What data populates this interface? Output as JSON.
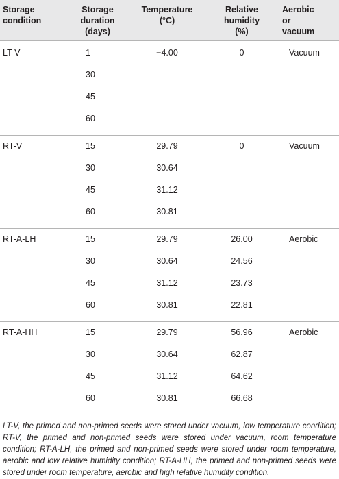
{
  "table": {
    "headers": {
      "condition": [
        "Storage",
        "condition"
      ],
      "duration": [
        "Storage",
        "duration",
        "(days)"
      ],
      "temperature": [
        "Temperature",
        "(°C)"
      ],
      "humidity": [
        "Relative",
        "humidity",
        "(%)"
      ],
      "aerobic": [
        "Aerobic",
        "or",
        "vacuum"
      ]
    },
    "groups": [
      {
        "condition": "LT-V",
        "aerobic": "Vacuum",
        "rows": [
          {
            "duration": "1",
            "temperature": "−4.00",
            "humidity": "0"
          },
          {
            "duration": "30",
            "temperature": "",
            "humidity": ""
          },
          {
            "duration": "45",
            "temperature": "",
            "humidity": ""
          },
          {
            "duration": "60",
            "temperature": "",
            "humidity": ""
          }
        ]
      },
      {
        "condition": "RT-V",
        "aerobic": "Vacuum",
        "rows": [
          {
            "duration": "15",
            "temperature": "29.79",
            "humidity": "0"
          },
          {
            "duration": "30",
            "temperature": "30.64",
            "humidity": ""
          },
          {
            "duration": "45",
            "temperature": "31.12",
            "humidity": ""
          },
          {
            "duration": "60",
            "temperature": "30.81",
            "humidity": ""
          }
        ]
      },
      {
        "condition": "RT-A-LH",
        "aerobic": "Aerobic",
        "rows": [
          {
            "duration": "15",
            "temperature": "29.79",
            "humidity": "26.00"
          },
          {
            "duration": "30",
            "temperature": "30.64",
            "humidity": "24.56"
          },
          {
            "duration": "45",
            "temperature": "31.12",
            "humidity": "23.73"
          },
          {
            "duration": "60",
            "temperature": "30.81",
            "humidity": "22.81"
          }
        ]
      },
      {
        "condition": "RT-A-HH",
        "aerobic": "Aerobic",
        "rows": [
          {
            "duration": "15",
            "temperature": "29.79",
            "humidity": "56.96"
          },
          {
            "duration": "30",
            "temperature": "30.64",
            "humidity": "62.87"
          },
          {
            "duration": "45",
            "temperature": "31.12",
            "humidity": "64.62"
          },
          {
            "duration": "60",
            "temperature": "30.81",
            "humidity": "66.68"
          }
        ]
      }
    ]
  },
  "footnote": "LT-V, the primed and non-primed seeds were stored under vacuum, low temperature condition; RT-V, the primed and non-primed seeds were stored under vacuum, room temperature condition; RT-A-LH, the primed and non-primed seeds were stored under room temperature, aerobic and low relative humidity condition; RT-A-HH, the primed and non-primed seeds were stored under room temperature, aerobic and high relative humidity condition."
}
